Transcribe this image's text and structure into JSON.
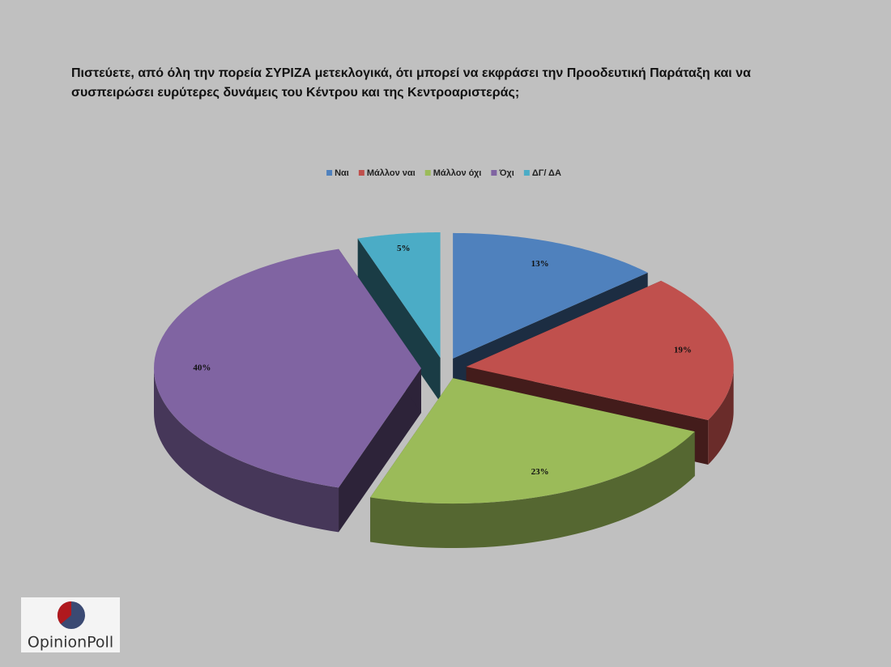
{
  "chart_data": {
    "type": "pie3d",
    "title": "Πιστεύετε, από όλη την πορεία ΣΥΡΙΖΑ μετεκλογικά, ότι μπορεί να εκφράσει την Προοδευτική Παράταξη και να συσπειρώσει ευρύτερες δυνάμεις του Κέντρου και της Κεντροαριστεράς;",
    "categories": [
      "Ναι",
      "Μάλλον ναι",
      "Μάλλον όχι",
      "Όχι",
      "ΔΓ/ ΔΑ"
    ],
    "values": [
      13,
      19,
      23,
      40,
      5
    ],
    "value_labels": [
      "13%",
      "19%",
      "23%",
      "40%",
      "5%"
    ],
    "colors": [
      "#4f81bd",
      "#c0504d",
      "#9bbb59",
      "#8064a2",
      "#4bacc6"
    ],
    "legend": "top"
  },
  "logo": "OpinionPoll"
}
